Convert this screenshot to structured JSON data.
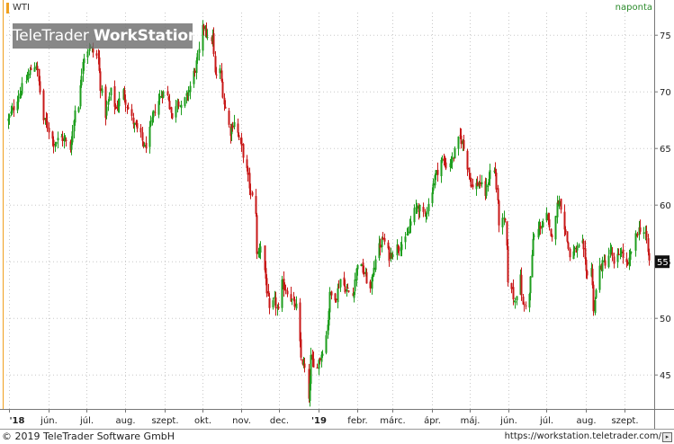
{
  "header": {
    "instrument": "WTI",
    "interval": "naponta"
  },
  "watermark": {
    "brand_light": "TeleTrader ",
    "brand_bold": "WorkStation"
  },
  "footer": {
    "copyright": "© 2019 TeleTrader Software GmbH",
    "url": "https://workstation.teletrader.com/"
  },
  "colors": {
    "up": "#1e9e1e",
    "down": "#c81818",
    "grid": "#c8c8c8",
    "last_badge_bg": "#111111"
  },
  "chart_data": {
    "type": "candlestick",
    "title": "",
    "xlabel": "",
    "ylabel": "",
    "ylim": [
      42,
      77
    ],
    "y_ticks": [
      45,
      50,
      55,
      60,
      65,
      70,
      75
    ],
    "x_ticks": [
      "'18",
      "jún.",
      "júl.",
      "aug.",
      "szept.",
      "okt.",
      "nov.",
      "dec.",
      "'19",
      "febr.",
      "márc.",
      "ápr.",
      "máj.",
      "jún.",
      "júl.",
      "aug.",
      "szept."
    ],
    "x_tick_dates": [
      "2018-05-01",
      "2018-06-01",
      "2018-07-01",
      "2018-08-01",
      "2018-09-01",
      "2018-10-01",
      "2018-11-01",
      "2018-12-01",
      "2019-01-01",
      "2019-02-01",
      "2019-03-01",
      "2019-04-01",
      "2019-05-01",
      "2019-06-01",
      "2019-07-01",
      "2019-08-01",
      "2019-09-01"
    ],
    "x_range": [
      "2018-04-30",
      "2019-09-20"
    ],
    "last_value_label": "55",
    "grid": true,
    "close_path": [
      [
        "2018-04-30",
        67.5
      ],
      [
        "2018-05-07",
        69.5
      ],
      [
        "2018-05-14",
        71.0
      ],
      [
        "2018-05-18",
        72.0
      ],
      [
        "2018-05-22",
        72.5
      ],
      [
        "2018-05-25",
        70.0
      ],
      [
        "2018-05-28",
        67.5
      ],
      [
        "2018-05-31",
        67.0
      ],
      [
        "2018-06-05",
        65.5
      ],
      [
        "2018-06-11",
        66.0
      ],
      [
        "2018-06-15",
        65.5
      ],
      [
        "2018-06-18",
        65.0
      ],
      [
        "2018-06-20",
        66.5
      ],
      [
        "2018-06-22",
        68.5
      ],
      [
        "2018-06-25",
        69.0
      ],
      [
        "2018-06-28",
        73.0
      ],
      [
        "2018-07-03",
        74.0
      ],
      [
        "2018-07-06",
        73.5
      ],
      [
        "2018-07-10",
        73.0
      ],
      [
        "2018-07-12",
        70.5
      ],
      [
        "2018-07-16",
        68.0
      ],
      [
        "2018-07-20",
        70.0
      ],
      [
        "2018-07-24",
        68.5
      ],
      [
        "2018-07-30",
        70.0
      ],
      [
        "2018-08-03",
        68.5
      ],
      [
        "2018-08-08",
        67.0
      ],
      [
        "2018-08-13",
        66.0
      ],
      [
        "2018-08-16",
        65.0
      ],
      [
        "2018-08-20",
        66.5
      ],
      [
        "2018-08-24",
        68.5
      ],
      [
        "2018-08-30",
        70.0
      ],
      [
        "2018-09-04",
        69.5
      ],
      [
        "2018-09-07",
        67.5
      ],
      [
        "2018-09-11",
        69.5
      ],
      [
        "2018-09-14",
        68.5
      ],
      [
        "2018-09-18",
        69.5
      ],
      [
        "2018-09-21",
        70.5
      ],
      [
        "2018-09-25",
        72.0
      ],
      [
        "2018-09-28",
        73.5
      ],
      [
        "2018-10-01",
        75.5
      ],
      [
        "2018-10-03",
        76.0
      ],
      [
        "2018-10-05",
        74.5
      ],
      [
        "2018-10-09",
        74.8
      ],
      [
        "2018-10-11",
        71.5
      ],
      [
        "2018-10-15",
        71.8
      ],
      [
        "2018-10-18",
        69.0
      ],
      [
        "2018-10-23",
        66.5
      ],
      [
        "2018-10-26",
        67.5
      ],
      [
        "2018-10-31",
        65.5
      ],
      [
        "2018-11-05",
        63.0
      ],
      [
        "2018-11-08",
        61.0
      ],
      [
        "2018-11-12",
        59.5
      ],
      [
        "2018-11-13",
        55.5
      ],
      [
        "2018-11-16",
        56.5
      ],
      [
        "2018-11-20",
        53.5
      ],
      [
        "2018-11-23",
        50.5
      ],
      [
        "2018-11-27",
        51.5
      ],
      [
        "2018-11-30",
        50.5
      ],
      [
        "2018-12-03",
        53.0
      ],
      [
        "2018-12-07",
        52.5
      ],
      [
        "2018-12-11",
        51.5
      ],
      [
        "2018-12-14",
        51.0
      ],
      [
        "2018-12-18",
        46.5
      ],
      [
        "2018-12-21",
        45.5
      ],
      [
        "2018-12-24",
        42.5
      ],
      [
        "2018-12-26",
        46.5
      ],
      [
        "2018-12-28",
        45.5
      ],
      [
        "2019-01-02",
        46.5
      ],
      [
        "2019-01-07",
        48.5
      ],
      [
        "2019-01-10",
        52.0
      ],
      [
        "2019-01-15",
        52.0
      ],
      [
        "2019-01-18",
        53.5
      ],
      [
        "2019-01-23",
        52.5
      ],
      [
        "2019-01-28",
        52.0
      ],
      [
        "2019-02-01",
        55.0
      ],
      [
        "2019-02-06",
        54.0
      ],
      [
        "2019-02-11",
        52.5
      ],
      [
        "2019-02-15",
        55.5
      ],
      [
        "2019-02-21",
        57.0
      ],
      [
        "2019-02-26",
        55.5
      ],
      [
        "2019-03-01",
        56.0
      ],
      [
        "2019-03-06",
        56.5
      ],
      [
        "2019-03-11",
        56.8
      ],
      [
        "2019-03-15",
        58.5
      ],
      [
        "2019-03-20",
        60.0
      ],
      [
        "2019-03-25",
        59.0
      ],
      [
        "2019-03-29",
        60.0
      ],
      [
        "2019-04-03",
        62.5
      ],
      [
        "2019-04-08",
        64.0
      ],
      [
        "2019-04-12",
        63.5
      ],
      [
        "2019-04-17",
        64.0
      ],
      [
        "2019-04-23",
        66.0
      ],
      [
        "2019-04-25",
        65.5
      ],
      [
        "2019-04-29",
        63.5
      ],
      [
        "2019-05-03",
        61.5
      ],
      [
        "2019-05-08",
        62.0
      ],
      [
        "2019-05-13",
        61.0
      ],
      [
        "2019-05-17",
        63.0
      ],
      [
        "2019-05-21",
        63.0
      ],
      [
        "2019-05-24",
        58.5
      ],
      [
        "2019-05-29",
        58.5
      ],
      [
        "2019-05-31",
        53.5
      ],
      [
        "2019-06-05",
        51.5
      ],
      [
        "2019-06-10",
        53.5
      ],
      [
        "2019-06-12",
        51.0
      ],
      [
        "2019-06-17",
        52.0
      ],
      [
        "2019-06-20",
        57.0
      ],
      [
        "2019-06-25",
        58.0
      ],
      [
        "2019-07-01",
        59.0
      ],
      [
        "2019-07-04",
        57.0
      ],
      [
        "2019-07-10",
        60.5
      ],
      [
        "2019-07-12",
        60.0
      ],
      [
        "2019-07-16",
        57.5
      ],
      [
        "2019-07-19",
        55.5
      ],
      [
        "2019-07-24",
        56.0
      ],
      [
        "2019-07-29",
        56.5
      ],
      [
        "2019-08-01",
        54.0
      ],
      [
        "2019-08-05",
        54.5
      ],
      [
        "2019-08-07",
        51.0
      ],
      [
        "2019-08-12",
        54.5
      ],
      [
        "2019-08-16",
        55.0
      ],
      [
        "2019-08-21",
        56.0
      ],
      [
        "2019-08-23",
        54.5
      ],
      [
        "2019-08-28",
        56.0
      ],
      [
        "2019-09-03",
        54.5
      ],
      [
        "2019-09-06",
        56.0
      ],
      [
        "2019-09-10",
        57.5
      ],
      [
        "2019-09-13",
        58.0
      ],
      [
        "2019-09-17",
        57.5
      ],
      [
        "2019-09-20",
        55.0
      ]
    ]
  }
}
